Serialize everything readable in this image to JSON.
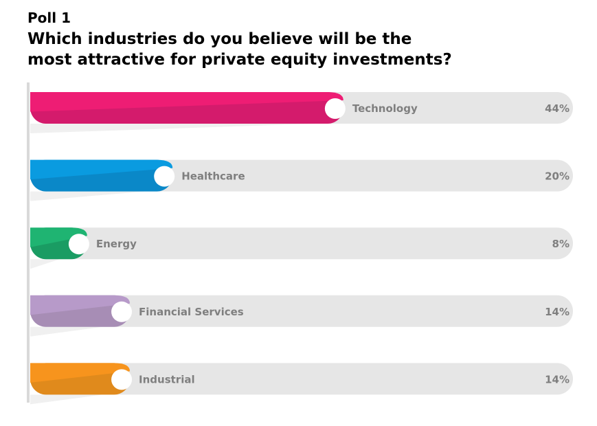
{
  "poll_label": "Poll 1",
  "title_line1": "Which industries do you believe will be the",
  "title_line2": "most attractive for private equity investments?",
  "chart_data": {
    "type": "bar",
    "orientation": "horizontal",
    "categories": [
      "Technology",
      "Healthcare",
      "Energy",
      "Financial Services",
      "Industrial"
    ],
    "values": [
      44,
      20,
      8,
      14,
      14
    ],
    "value_labels": [
      "44%",
      "20%",
      "8%",
      "14%",
      "14%"
    ],
    "unit": "%",
    "colors": [
      "#ee1d74",
      "#0a9be0",
      "#1fb472",
      "#b79ac9",
      "#f7941d"
    ],
    "dark_colors": [
      "#d41b6c",
      "#0a88c8",
      "#1a9c63",
      "#a78db5",
      "#e08a1c"
    ],
    "track_color": "#e6e6e6",
    "grid": false
  }
}
